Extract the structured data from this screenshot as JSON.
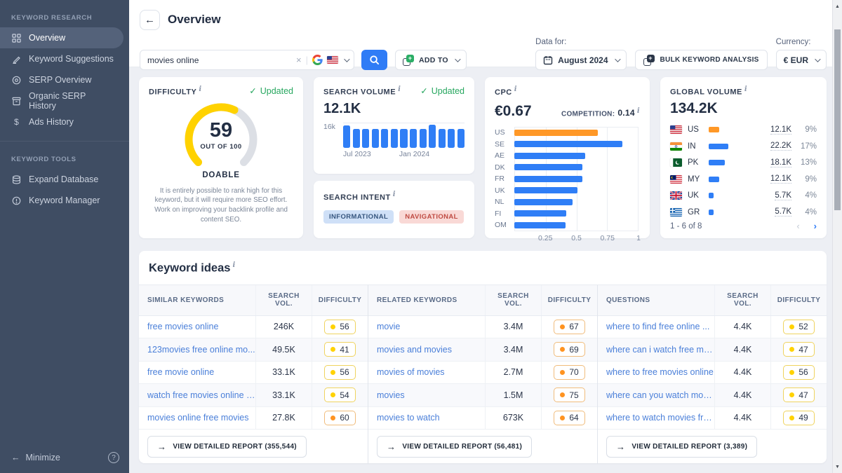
{
  "colors": {
    "accent_blue": "#2f7cf6",
    "bar_blue": "#2f7ef6",
    "highlight_orange": "#ff9827",
    "difficulty_yellow": "#ffd200",
    "updated_green": "#27a75f",
    "sidebar_bg": "#3f4d63"
  },
  "sidebar": {
    "sections": [
      {
        "title": "KEYWORD RESEARCH",
        "items": [
          {
            "label": "Overview",
            "icon": "grid-icon",
            "active": true
          },
          {
            "label": "Keyword Suggestions",
            "icon": "pencil-icon",
            "active": false
          },
          {
            "label": "SERP Overview",
            "icon": "target-icon",
            "active": false
          },
          {
            "label": "Organic SERP History",
            "icon": "archive-icon",
            "active": false
          },
          {
            "label": "Ads History",
            "icon": "dollar-icon",
            "active": false
          }
        ]
      },
      {
        "title": "KEYWORD TOOLS",
        "items": [
          {
            "label": "Expand Database",
            "icon": "database-icon",
            "active": false
          },
          {
            "label": "Keyword Manager",
            "icon": "info-circle-icon",
            "active": false
          }
        ]
      }
    ],
    "minimize_label": "Minimize"
  },
  "topbar": {
    "title": "Overview",
    "search": {
      "value": "movies online",
      "engine": "Google",
      "region": "US"
    },
    "add_to_label": "ADD TO",
    "data_for_label": "Data for:",
    "period": "August 2024",
    "bulk_label": "BULK KEYWORD ANALYSIS",
    "currency_label": "Currency:",
    "currency": "€ EUR"
  },
  "cards": {
    "difficulty": {
      "title": "DIFFICULTY",
      "updated_label": "Updated",
      "score": "59",
      "out_of": "OUT OF 100",
      "verdict": "DOABLE",
      "description": "It is entirely possible to rank high for this keyword, but it will require more SEO effort. Work on improving your backlink profile and content SEO."
    },
    "search_volume": {
      "title": "SEARCH VOLUME",
      "updated_label": "Updated",
      "value": "12.1K"
    },
    "search_intent": {
      "title": "SEARCH INTENT",
      "intents": [
        {
          "label": "INFORMATIONAL",
          "type": "informational"
        },
        {
          "label": "NAVIGATIONAL",
          "type": "navigational"
        }
      ]
    },
    "cpc": {
      "title": "CPC",
      "value": "€0.67",
      "competition_label": "COMPETITION:",
      "competition_value": "0.14"
    },
    "global_volume": {
      "title": "GLOBAL VOLUME",
      "value": "134.2K",
      "pagination": "1 - 6 of 8"
    }
  },
  "chart_data": [
    {
      "id": "search-volume-trend",
      "type": "bar",
      "x": [
        "Jul 2023",
        "Aug 2023",
        "Sep 2023",
        "Oct 2023",
        "Nov 2023",
        "Dec 2023",
        "Jan 2024",
        "Feb 2024",
        "Mar 2024",
        "Apr 2024",
        "May 2024",
        "Jun 2024",
        "Jul 2024"
      ],
      "values": [
        14.8,
        12.4,
        12.4,
        12.4,
        12.4,
        12.4,
        12.4,
        12.4,
        12.4,
        15.2,
        12.4,
        12.4,
        12.4
      ],
      "unit": "k searches/month",
      "ylim": [
        0,
        16
      ],
      "ytick_labels": [
        "16k"
      ],
      "xtick_labels": [
        "Jul 2023",
        "Jan 2024"
      ],
      "bar_color": "#2f7ef6"
    },
    {
      "id": "cpc-by-country",
      "type": "bar-horizontal",
      "categories": [
        "US",
        "SE",
        "AE",
        "DK",
        "FR",
        "UK",
        "NL",
        "FI",
        "OM"
      ],
      "values": [
        0.67,
        0.87,
        0.57,
        0.55,
        0.55,
        0.51,
        0.47,
        0.42,
        0.41
      ],
      "unit": "EUR",
      "xlim": [
        0,
        1
      ],
      "xticks": [
        0.25,
        0.5,
        0.75,
        1
      ],
      "xtick_labels": [
        "0.25",
        "0.5",
        "0.75",
        "1"
      ],
      "highlight_category": "US",
      "highlight_color": "#ff9827",
      "bar_color": "#2f7ef6"
    },
    {
      "id": "global-volume-by-country",
      "type": "table",
      "rows": [
        {
          "country": "US",
          "volume": "12.1K",
          "volume_value": 12.1,
          "percent": "9%",
          "bar_color": "#ff9827"
        },
        {
          "country": "IN",
          "volume": "22.2K",
          "volume_value": 22.2,
          "percent": "17%",
          "bar_color": "#2f7ef6"
        },
        {
          "country": "PK",
          "volume": "18.1K",
          "volume_value": 18.1,
          "percent": "13%",
          "bar_color": "#2f7ef6"
        },
        {
          "country": "MY",
          "volume": "12.1K",
          "volume_value": 12.1,
          "percent": "9%",
          "bar_color": "#2f7ef6"
        },
        {
          "country": "UK",
          "volume": "5.7K",
          "volume_value": 5.7,
          "percent": "4%",
          "bar_color": "#2f7ef6"
        },
        {
          "country": "GR",
          "volume": "5.7K",
          "volume_value": 5.7,
          "percent": "4%",
          "bar_color": "#2f7ef6"
        }
      ]
    }
  ],
  "keyword_ideas": {
    "title": "Keyword ideas",
    "groups": [
      {
        "keywords_header": "SIMILAR KEYWORDS",
        "volume_header": "SEARCH VOL.",
        "difficulty_header": "DIFFICULTY",
        "rows": [
          {
            "keyword": "free movies online",
            "volume": "246K",
            "difficulty": "56",
            "color": "yellow"
          },
          {
            "keyword": "123movies free online mo...",
            "volume": "49.5K",
            "difficulty": "41",
            "color": "yellow"
          },
          {
            "keyword": "free movie online",
            "volume": "33.1K",
            "difficulty": "56",
            "color": "yellow"
          },
          {
            "keyword": "watch free movies online f...",
            "volume": "33.1K",
            "difficulty": "54",
            "color": "yellow"
          },
          {
            "keyword": "movies online free movies",
            "volume": "27.8K",
            "difficulty": "60",
            "color": "orange"
          }
        ],
        "report_label": "VIEW DETAILED REPORT (355,544)"
      },
      {
        "keywords_header": "RELATED KEYWORDS",
        "volume_header": "SEARCH VOL.",
        "difficulty_header": "DIFFICULTY",
        "rows": [
          {
            "keyword": "movie",
            "volume": "3.4M",
            "difficulty": "67",
            "color": "orange"
          },
          {
            "keyword": "movies and movies",
            "volume": "3.4M",
            "difficulty": "69",
            "color": "orange"
          },
          {
            "keyword": "movies of movies",
            "volume": "2.7M",
            "difficulty": "70",
            "color": "orange"
          },
          {
            "keyword": "movies",
            "volume": "1.5M",
            "difficulty": "75",
            "color": "orange"
          },
          {
            "keyword": "movies to watch",
            "volume": "673K",
            "difficulty": "64",
            "color": "orange"
          }
        ],
        "report_label": "VIEW DETAILED REPORT (56,481)"
      },
      {
        "keywords_header": "QUESTIONS",
        "volume_header": "SEARCH VOL.",
        "difficulty_header": "DIFFICULTY",
        "rows": [
          {
            "keyword": "where to find free online ...",
            "volume": "4.4K",
            "difficulty": "52",
            "color": "yellow"
          },
          {
            "keyword": "where can i watch free mo...",
            "volume": "4.4K",
            "difficulty": "47",
            "color": "yellow"
          },
          {
            "keyword": "where to free movies online",
            "volume": "4.4K",
            "difficulty": "56",
            "color": "yellow"
          },
          {
            "keyword": "where can you watch movi...",
            "volume": "4.4K",
            "difficulty": "47",
            "color": "yellow"
          },
          {
            "keyword": "where to watch movies fre...",
            "volume": "4.4K",
            "difficulty": "49",
            "color": "yellow"
          }
        ],
        "report_label": "VIEW DETAILED REPORT (3,389)"
      }
    ]
  }
}
